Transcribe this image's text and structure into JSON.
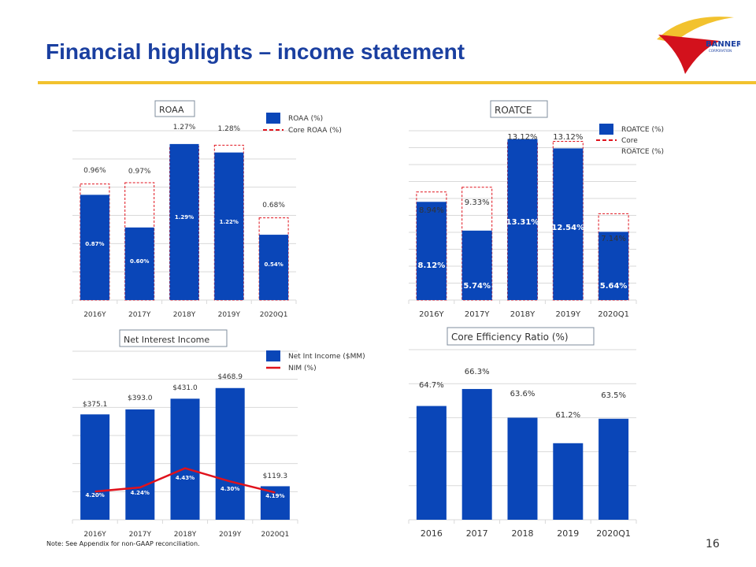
{
  "slide": {
    "title": "Financial highlights – income statement",
    "footnote": "Note: See Appendix for non-GAAP reconciliation.",
    "page_number": "16",
    "logo_text": "BANNER",
    "logo_subtext": "CORPORATION"
  },
  "colors": {
    "bar": "#0a46b8",
    "accent": "#e0121c",
    "rule": "#f2c22e",
    "title": "#1a3fa0",
    "grid": "#d9d9d9"
  },
  "chart_data": [
    {
      "id": "roaa",
      "type": "bar",
      "title": "ROAA",
      "categories": [
        "2016Y",
        "2017Y",
        "2018Y",
        "2019Y",
        "2020Q1"
      ],
      "series": [
        {
          "name": "ROAA (%)",
          "style": "solid-bar",
          "values": [
            0.87,
            0.6,
            1.29,
            1.22,
            0.54
          ],
          "labels": [
            "0.87%",
            "0.60%",
            "1.29%",
            "1.22%",
            "0.54%"
          ]
        },
        {
          "name": "Core ROAA (%)",
          "style": "dashed-outline",
          "values": [
            0.96,
            0.97,
            1.27,
            1.28,
            0.68
          ],
          "labels": [
            "0.96%",
            "0.97%",
            "1.27%",
            "1.28%",
            "0.68%"
          ]
        }
      ],
      "legend": [
        "ROAA (%)",
        "Core ROAA (%)"
      ],
      "ylim": [
        0,
        1.4
      ]
    },
    {
      "id": "roatce",
      "type": "bar",
      "title": "ROATCE",
      "categories": [
        "2016Y",
        "2017Y",
        "2018Y",
        "2019Y",
        "2020Q1"
      ],
      "series": [
        {
          "name": "ROATCE (%)",
          "style": "solid-bar",
          "values": [
            8.12,
            5.74,
            13.31,
            12.54,
            5.64
          ],
          "labels": [
            "8.12%",
            "5.74%",
            "13.31%",
            "12.54%",
            "5.64%"
          ]
        },
        {
          "name": "Core ROATCE (%)",
          "style": "dashed-outline",
          "values": [
            8.94,
            9.33,
            13.12,
            13.12,
            7.14
          ],
          "labels": [
            "8.94%",
            "9.33%",
            "13.12%",
            "13.12%",
            "7.14%"
          ]
        }
      ],
      "legend": [
        "ROATCE (%)",
        "Core",
        "ROATCE (%)"
      ],
      "ylim": [
        0,
        14
      ]
    },
    {
      "id": "nii",
      "type": "bar",
      "title": "Net Interest Income",
      "categories": [
        "2016Y",
        "2017Y",
        "2018Y",
        "2019Y",
        "2020Q1"
      ],
      "series": [
        {
          "name": "Net Int Income ($MM)",
          "style": "solid-bar",
          "values": [
            375.1,
            393.0,
            431.0,
            468.9,
            119.3
          ],
          "labels": [
            "$375.1",
            "$393.0",
            "$431.0",
            "$468.9",
            "$119.3"
          ]
        },
        {
          "name": "NIM (%)",
          "style": "line",
          "values": [
            4.2,
            4.24,
            4.43,
            4.3,
            4.19
          ],
          "labels": [
            "4.20%",
            "4.24%",
            "4.43%",
            "4.30%",
            "4.19%"
          ]
        }
      ],
      "legend": [
        "Net Int Income ($MM)",
        "NIM (%)"
      ],
      "ylim": [
        0,
        600
      ]
    },
    {
      "id": "efficiency",
      "type": "bar",
      "title": "Core Efficiency Ratio (%)",
      "categories": [
        "2016",
        "2017",
        "2018",
        "2019",
        "2020Q1"
      ],
      "series": [
        {
          "name": "Core Efficiency Ratio (%)",
          "style": "solid-bar",
          "values": [
            64.7,
            66.3,
            63.6,
            61.2,
            63.5
          ],
          "labels": [
            "64.7%",
            "66.3%",
            "63.6%",
            "61.2%",
            "63.5%"
          ]
        }
      ],
      "legend": [],
      "ylim": [
        54,
        70
      ]
    }
  ]
}
